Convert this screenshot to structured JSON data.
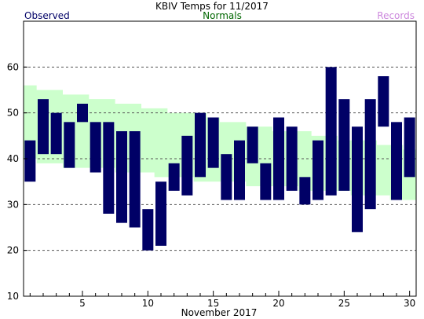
{
  "chart_data": {
    "type": "floating-bar",
    "title": "KBIV Temps for 11/2017",
    "xlabel": "November 2017",
    "ylabel": "",
    "xlim": [
      0.5,
      30.5
    ],
    "ylim": [
      10,
      70
    ],
    "y_ticks": [
      10,
      20,
      30,
      40,
      50,
      60
    ],
    "x_ticks": [
      5,
      10,
      15,
      20,
      25,
      30
    ],
    "grid": "horizontal dashed",
    "legend": {
      "observed": "Observed",
      "normals": "Normals",
      "records": "Records"
    },
    "colors": {
      "observed": "#000066",
      "normals_fill": "#ccffcc",
      "normals_label": "#006600",
      "records_label": "#cc88dd",
      "grid": "#555555",
      "axis": "#000000"
    },
    "days": [
      1,
      2,
      3,
      4,
      5,
      6,
      7,
      8,
      9,
      10,
      11,
      12,
      13,
      14,
      15,
      16,
      17,
      18,
      19,
      20,
      21,
      22,
      23,
      24,
      25,
      26,
      27,
      28,
      29,
      30
    ],
    "observed_high": [
      44,
      53,
      50,
      48,
      52,
      48,
      48,
      46,
      46,
      29,
      35,
      39,
      45,
      50,
      49,
      41,
      44,
      47,
      39,
      49,
      47,
      36,
      44,
      60,
      53,
      47,
      53,
      58,
      48,
      49
    ],
    "observed_low": [
      35,
      41,
      41,
      38,
      48,
      37,
      28,
      26,
      25,
      20,
      21,
      33,
      32,
      36,
      38,
      31,
      31,
      39,
      31,
      31,
      33,
      30,
      31,
      32,
      33,
      24,
      29,
      47,
      31,
      36
    ],
    "normal_high": [
      56,
      55,
      55,
      54,
      54,
      53,
      53,
      52,
      52,
      51,
      51,
      50,
      50,
      50,
      49,
      48,
      48,
      47,
      47,
      46,
      46,
      46,
      45,
      45,
      44,
      44,
      44,
      43,
      43,
      42
    ],
    "normal_low": [
      40,
      39,
      39,
      38,
      38,
      38,
      38,
      37,
      37,
      37,
      36,
      36,
      36,
      35,
      35,
      35,
      35,
      34,
      34,
      34,
      34,
      33,
      33,
      33,
      33,
      32,
      32,
      32,
      31,
      31
    ]
  }
}
